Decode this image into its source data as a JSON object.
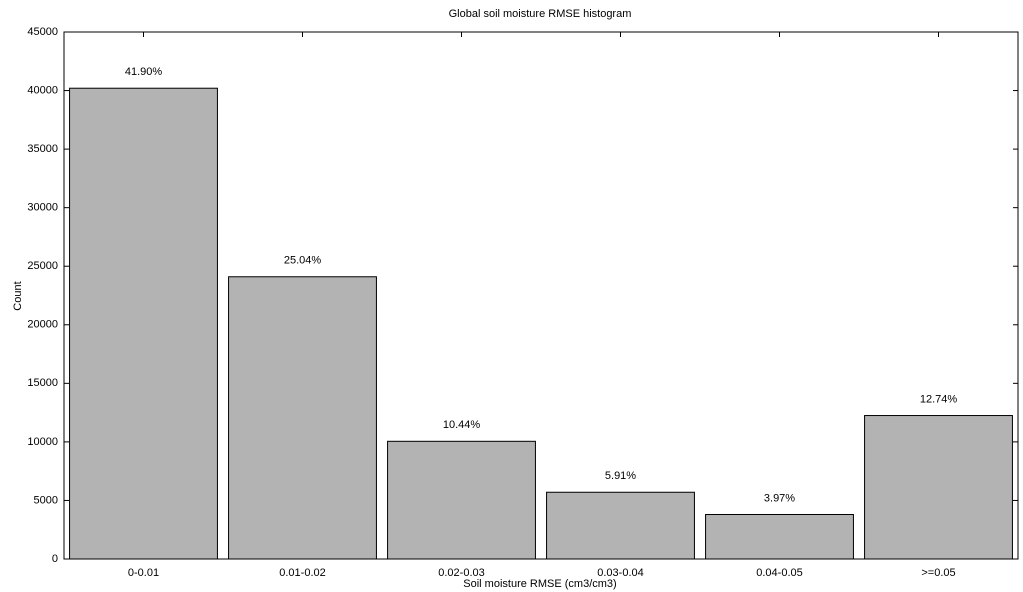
{
  "chart_data": {
    "type": "bar",
    "title": "Global soil moisture RMSE histogram",
    "x_label": "Soil moisture RMSE (cm3/cm3)",
    "y_label": "Count",
    "categories": [
      "0-0.01",
      "0.01-0.02",
      "0.02-0.03",
      "0.03-0.04",
      "0.04-0.05",
      ">=0.05"
    ],
    "values": [
      40200,
      24100,
      10050,
      5700,
      3800,
      12250
    ],
    "bar_labels": [
      "41.90%",
      "25.04%",
      "10.44%",
      "5.91%",
      "3.97%",
      "12.74%"
    ],
    "color": "#b3b3b3",
    "ylim": [
      0,
      45000
    ],
    "yticks": [
      0,
      5000,
      10000,
      15000,
      20000,
      25000,
      30000,
      35000,
      40000,
      45000
    ],
    "grid": false
  }
}
